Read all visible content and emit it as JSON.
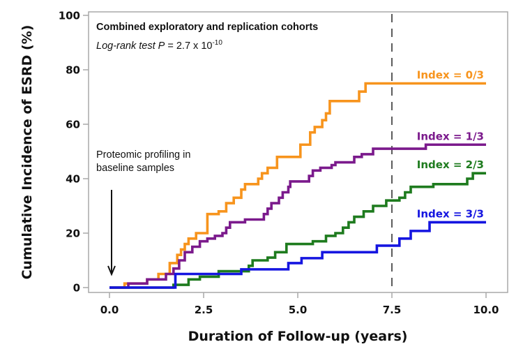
{
  "chart_data": {
    "type": "line",
    "step": true,
    "title": "Combined exploratory and replication cohorts",
    "subtitle": {
      "prefix": "Log-rank test P",
      "equals": " = 2.7 x 10",
      "exponent": "-10"
    },
    "xlabel": "Duration of Follow-up (years)",
    "ylabel": "Cumulative Incidence of ESRD (%)",
    "xlim": [
      0,
      10
    ],
    "ylim": [
      0,
      100
    ],
    "xticks": [
      0,
      2.5,
      5,
      7.5,
      10
    ],
    "xtick_labels": [
      "0.0",
      "2.5",
      "5.0",
      "7.5",
      "10.0"
    ],
    "yticks": [
      0,
      20,
      40,
      60,
      80,
      100
    ],
    "ytick_labels": [
      "0",
      "20",
      "40",
      "60",
      "80",
      "100"
    ],
    "grid": false,
    "reference_line": {
      "x": 7.5,
      "style": "dashed"
    },
    "annotation": {
      "lines": [
        "Proteomic profiling in",
        "baseline samples"
      ],
      "arrow_at_x": 0
    },
    "series": [
      {
        "name": "Index = 0/3",
        "color": "#F7941D",
        "x": [
          0,
          0.4,
          1.0,
          1.3,
          1.6,
          1.8,
          1.9,
          2.0,
          2.1,
          2.3,
          2.6,
          2.9,
          3.1,
          3.3,
          3.5,
          3.6,
          3.95,
          4.05,
          4.2,
          4.45,
          5.07,
          5.33,
          5.45,
          5.65,
          5.75,
          5.85,
          6.63,
          6.8,
          10
        ],
        "y": [
          0,
          1.5,
          3,
          5,
          9,
          12,
          14,
          16,
          18,
          20,
          27,
          28,
          31,
          33,
          36,
          38,
          40,
          42,
          44,
          48,
          52.5,
          57,
          59,
          61.5,
          64,
          68.5,
          72,
          75,
          75
        ]
      },
      {
        "name": "Index = 1/3",
        "color": "#7B1A8C",
        "x": [
          0,
          0.5,
          1.0,
          1.5,
          1.7,
          1.85,
          2.0,
          2.2,
          2.4,
          2.6,
          2.8,
          3.0,
          3.1,
          3.2,
          3.6,
          4.1,
          4.2,
          4.3,
          4.5,
          4.6,
          4.75,
          4.8,
          5.3,
          5.4,
          5.6,
          5.9,
          6.0,
          6.5,
          6.7,
          7.0,
          8.4,
          10
        ],
        "y": [
          0,
          1.5,
          3,
          5,
          7,
          10,
          13,
          15,
          17,
          18,
          19,
          20,
          22,
          24,
          25,
          27,
          29,
          31,
          33,
          35,
          37,
          39,
          41,
          43,
          44,
          45,
          46,
          48,
          49,
          51,
          52.5,
          52.5
        ]
      },
      {
        "name": "Index = 2/3",
        "color": "#1E7B1E",
        "x": [
          0,
          1.7,
          2.1,
          2.4,
          2.9,
          3.7,
          3.8,
          4.2,
          4.4,
          4.7,
          5.4,
          5.75,
          6.0,
          6.2,
          6.35,
          6.5,
          6.75,
          7.0,
          7.35,
          7.7,
          7.85,
          8.0,
          8.6,
          9.5,
          9.65,
          10
        ],
        "y": [
          0,
          1,
          3,
          4,
          6,
          8,
          10,
          11,
          13,
          16,
          17,
          19,
          20,
          22,
          24,
          26,
          28,
          30,
          32,
          33,
          35,
          37,
          38,
          40,
          42,
          42
        ]
      },
      {
        "name": "Index = 3/3",
        "color": "#1515E0",
        "x": [
          0,
          1.75,
          3.5,
          4.75,
          5.1,
          5.65,
          7.1,
          7.7,
          8.0,
          8.5,
          10
        ],
        "y": [
          0,
          5,
          6.7,
          9,
          10.8,
          13,
          15.4,
          18,
          20.8,
          24,
          24
        ]
      }
    ]
  }
}
